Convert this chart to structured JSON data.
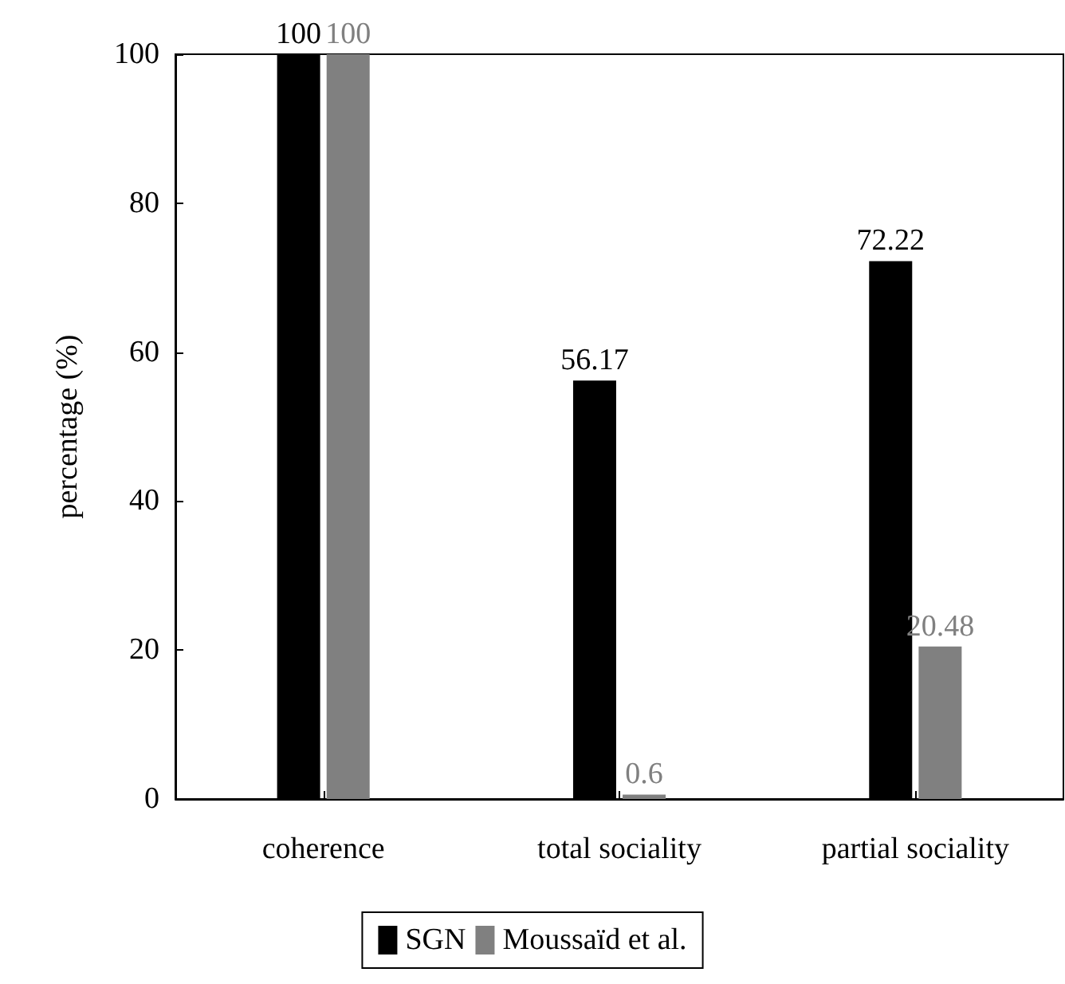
{
  "chart_data": {
    "type": "bar",
    "ylabel": "percentage (%)",
    "categories": [
      "coherence",
      "total sociality",
      "partial sociality"
    ],
    "series": [
      {
        "name": "SGN",
        "color": "#000000",
        "values": [
          100,
          56.17,
          72.22
        ]
      },
      {
        "name": "Moussaïd et al.",
        "color": "#808080",
        "values": [
          100,
          0.6,
          20.48
        ]
      }
    ],
    "ylim": [
      0,
      100
    ],
    "yticks": [
      0,
      20,
      40,
      60,
      80,
      100
    ],
    "grid": false,
    "legend": "bottom",
    "data_labels": true
  }
}
